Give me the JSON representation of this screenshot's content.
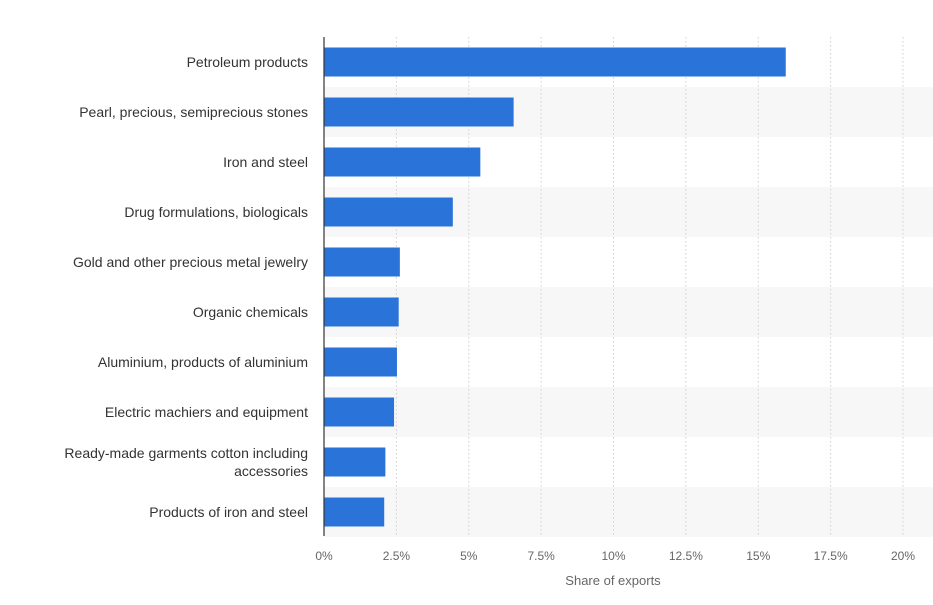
{
  "chart_data": {
    "type": "bar",
    "orientation": "horizontal",
    "categories": [
      "Petroleum products",
      "Pearl, precious, semiprecious stones",
      "Iron and steel",
      "Drug formulations, biologicals",
      "Gold and other precious metal jewelry",
      "Organic chemicals",
      "Aluminium, products of aluminium",
      "Electric machiers and equipment",
      "Ready-made garments cotton including accessories",
      "Products of iron and steel"
    ],
    "values": [
      15.95,
      6.55,
      5.4,
      4.45,
      2.62,
      2.58,
      2.52,
      2.42,
      2.12,
      2.08
    ],
    "xlim": [
      0,
      20
    ],
    "ticks": [
      "0%",
      "2.5%",
      "5%",
      "7.5%",
      "10%",
      "12.5%",
      "15%",
      "17.5%",
      "20%"
    ],
    "xlabel": "Share of exports",
    "grid": true,
    "bar_color": "#2a74d9",
    "band_color": "#f7f7f7"
  }
}
